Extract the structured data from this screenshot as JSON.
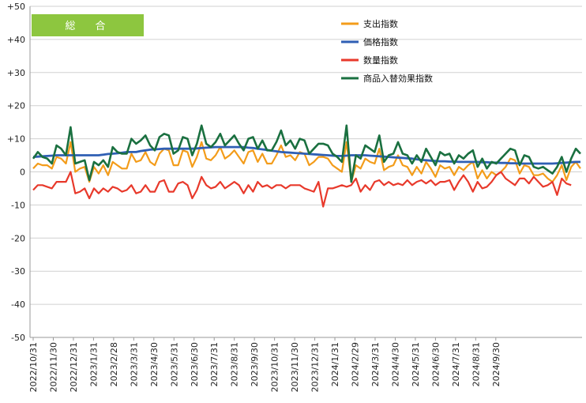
{
  "chart_data": {
    "type": "line",
    "title": "総　合",
    "title_box_color": "#8dc63f",
    "ylim": [
      -50,
      50
    ],
    "yticks": [
      50,
      40,
      30,
      20,
      10,
      0,
      -10,
      -20,
      -30,
      -40,
      -50
    ],
    "ytick_labels": [
      "+50",
      "+40",
      "+30",
      "+20",
      "+10",
      "0",
      "-10",
      "-20",
      "-30",
      "-40",
      "-50"
    ],
    "grid": true,
    "legend_placement": "top-right",
    "x_tick_labels": [
      "2022/10/31",
      "2022/11/30",
      "2022/12/31",
      "2023/1/31",
      "2023/2/28",
      "2023/3/31",
      "2023/4/30",
      "2023/5/31",
      "2023/6/30",
      "2023/7/31",
      "2023/8/31",
      "2023/9/30",
      "2023/10/31",
      "2023/11/30",
      "2023/12/31",
      "2024/1/31",
      "2024/2/29",
      "2024/3/31",
      "2024/4/30",
      "2024/5/31",
      "2024/6/30",
      "2024/7/31",
      "2024/8/31",
      "2024/9/30"
    ],
    "points_per_month": 4.3,
    "series": [
      {
        "name": "支出指数",
        "color": "#f39c1a",
        "values": [
          1,
          2.5,
          2,
          2,
          1,
          4.5,
          4,
          2.5,
          9,
          0,
          1,
          1.5,
          -3,
          1.5,
          -0.5,
          2,
          -1,
          3,
          2,
          1,
          1,
          5.5,
          3,
          3.5,
          6,
          3,
          2,
          5.5,
          7,
          6.5,
          2,
          2,
          6.5,
          6,
          1.5,
          4.5,
          9,
          4,
          3.5,
          5,
          7.5,
          4,
          5,
          6.5,
          4.5,
          2.5,
          6,
          6.5,
          3,
          5.5,
          2.5,
          2.5,
          5,
          8,
          4.5,
          5,
          3.5,
          6,
          5.5,
          2,
          3,
          4.5,
          4.5,
          4,
          2,
          1,
          0,
          9,
          -3,
          2,
          1,
          4,
          3,
          2.5,
          7,
          0.5,
          1.5,
          2,
          5,
          2,
          1.5,
          -1,
          1.5,
          -0.5,
          3,
          1,
          -1.5,
          2,
          1,
          1.5,
          -1,
          1.5,
          0.5,
          2,
          3,
          -2,
          0.5,
          -2,
          0,
          -1,
          0,
          1.5,
          4,
          3.5,
          -0.5,
          2,
          1.5,
          -1,
          -1,
          -0.5,
          -2,
          -3,
          -1,
          2,
          -2.5,
          1.5,
          3,
          1
        ]
      },
      {
        "name": "価格指数",
        "color": "#2f5fb4",
        "values": [
          4.5,
          4.6,
          4.7,
          4.8,
          4.9,
          5,
          5,
          5,
          5,
          5,
          5,
          5,
          5,
          5,
          5,
          5.2,
          5.4,
          5.5,
          5.6,
          5.8,
          6,
          6,
          6,
          6.3,
          6.5,
          6.7,
          6.8,
          6.9,
          7,
          7,
          7,
          7,
          7,
          7,
          7,
          7.1,
          7.2,
          7.3,
          7.4,
          7.5,
          7.5,
          7.5,
          7.5,
          7.5,
          7.5,
          7.5,
          7.3,
          7.2,
          7,
          6.8,
          6.6,
          6.4,
          6.2,
          6,
          5.9,
          5.8,
          5.7,
          5.6,
          5.5,
          5.4,
          5.3,
          5.2,
          5.1,
          5,
          4.9,
          4.8,
          4.8,
          4.9,
          5,
          5,
          5,
          5,
          4.9,
          4.8,
          4.7,
          4.6,
          4.5,
          4.4,
          4.3,
          4.2,
          4.1,
          4,
          3.8,
          3.6,
          3.5,
          3.4,
          3.3,
          3.2,
          3.2,
          3.1,
          3.1,
          3,
          3,
          3,
          3,
          3,
          2.9,
          2.9,
          2.8,
          2.8,
          2.7,
          2.7,
          2.6,
          2.6,
          2.5,
          2.5,
          2.5,
          2.5,
          2.5,
          2.5,
          2.5,
          2.5,
          2.6,
          2.7,
          2.8,
          2.9,
          3,
          3
        ]
      },
      {
        "name": "数量指数",
        "color": "#e8392b",
        "values": [
          -5.5,
          -4,
          -4,
          -4.5,
          -5,
          -3,
          -3,
          -3,
          0,
          -6.5,
          -6,
          -5,
          -8,
          -5,
          -6.5,
          -5,
          -6,
          -4.5,
          -5,
          -6,
          -5.5,
          -4,
          -6.5,
          -6,
          -4,
          -6,
          -6,
          -3,
          -2.5,
          -6,
          -6,
          -3.5,
          -3,
          -4,
          -8,
          -5.5,
          -1.5,
          -4,
          -5,
          -4.5,
          -3,
          -5,
          -4,
          -3,
          -4,
          -6.5,
          -4,
          -6,
          -3,
          -4.5,
          -4,
          -5,
          -4,
          -4,
          -5,
          -4,
          -4,
          -4,
          -5,
          -5.5,
          -6,
          -3,
          -10.5,
          -5,
          -5,
          -4.5,
          -4,
          -4.5,
          -4,
          -2,
          -6,
          -4,
          -5.5,
          -3,
          -2.5,
          -4,
          -3,
          -4,
          -3.5,
          -4,
          -2.5,
          -4,
          -3,
          -2.5,
          -3.5,
          -2.5,
          -4,
          -3,
          -3,
          -2.5,
          -5.5,
          -3,
          -1,
          -3,
          -6,
          -3,
          -5,
          -4.5,
          -3,
          -1,
          0,
          -2,
          -3,
          -4,
          -2,
          -2,
          -3.5,
          -1.5,
          -3,
          -4.5,
          -4,
          -3,
          -7,
          -2,
          -3.5,
          -4
        ]
      },
      {
        "name": "商品入替効果指数",
        "color": "#1a7040",
        "values": [
          4,
          6,
          4.5,
          4,
          2.5,
          8,
          7,
          5,
          13.5,
          2.5,
          3,
          3.5,
          -2.5,
          3,
          2,
          3.5,
          1.5,
          7.5,
          6,
          5.5,
          5.5,
          10,
          8.5,
          9.5,
          11,
          8,
          6.5,
          10.5,
          11.5,
          11,
          5.5,
          6.5,
          10.5,
          10,
          5,
          8.5,
          14,
          8.5,
          7.5,
          9,
          11.5,
          8,
          9.5,
          11,
          8.5,
          6.5,
          10,
          10.5,
          7,
          9.5,
          6.5,
          6.5,
          9,
          12.5,
          8,
          9.5,
          7,
          10,
          9.5,
          5.5,
          7,
          8.5,
          8.5,
          8,
          5.5,
          4.5,
          3,
          14,
          -3,
          5,
          4,
          8,
          7,
          6,
          11,
          3,
          5,
          5.5,
          9,
          5.5,
          5,
          2.5,
          5,
          3,
          7,
          4.5,
          2,
          6,
          5,
          5.5,
          2.5,
          5,
          4,
          5.5,
          6.5,
          1.5,
          4,
          1,
          3,
          2.5,
          4,
          5.5,
          7,
          6.5,
          2,
          5,
          4.5,
          1.5,
          1,
          1.5,
          0.5,
          -0.5,
          1.5,
          4.5,
          0,
          4,
          7,
          5.5
        ]
      }
    ]
  }
}
